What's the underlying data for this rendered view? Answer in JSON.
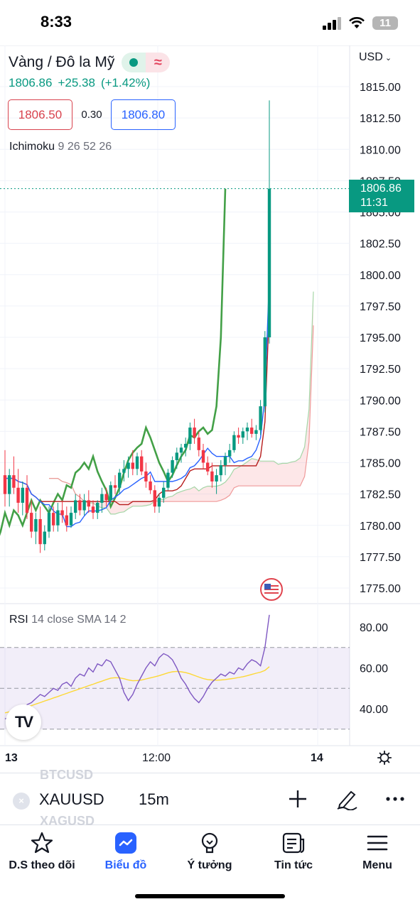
{
  "status_bar": {
    "time": "8:33",
    "battery": "11"
  },
  "header": {
    "symbol_title": "Vàng / Đô la Mỹ",
    "currency": "USD",
    "last_price": "1806.86",
    "change": "+25.38",
    "change_pct": "(+1.42%)",
    "bid": "1806.50",
    "spread": "0.30",
    "ask": "1806.80",
    "indicator_name": "Ichimoku",
    "indicator_params": "9 26 52 26"
  },
  "price_tag": {
    "price": "1806.86",
    "countdown": "11:31"
  },
  "rsi": {
    "name": "RSI",
    "params": "14 close SMA 14 2"
  },
  "colors": {
    "up": "#089981",
    "down": "#f23645",
    "tenkan": "#2962ff",
    "kijun": "#b71c1c",
    "chikou": "#43a047",
    "rsi_line": "#7e57c2",
    "rsi_ma": "#fdd835",
    "accent": "#2962ff"
  },
  "time_axis": [
    {
      "label": "13",
      "bold": true
    },
    {
      "label": "12:00",
      "bold": false
    },
    {
      "label": "14",
      "bold": true
    }
  ],
  "toolbar": {
    "ghost_prev": "BTCUSD",
    "ghost_next": "XAGUSD",
    "symbol": "XAUUSD",
    "interval": "15m"
  },
  "tabs": [
    {
      "label": "D.S theo dõi",
      "icon": "star-icon",
      "active": false
    },
    {
      "label": "Biểu đồ",
      "icon": "chart-icon",
      "active": true
    },
    {
      "label": "Ý tưởng",
      "icon": "bulb-icon",
      "active": false
    },
    {
      "label": "Tin tức",
      "icon": "news-icon",
      "active": false
    },
    {
      "label": "Menu",
      "icon": "menu-icon",
      "active": false
    }
  ],
  "chart_data": [
    {
      "type": "candlestick",
      "title": "Vàng / Đô la Mỹ",
      "interval": "15m",
      "y_axis_ticks": [
        "1815.00",
        "1812.50",
        "1810.00",
        "1807.50",
        "1805.00",
        "1802.50",
        "1800.00",
        "1797.50",
        "1795.00",
        "1792.50",
        "1790.00",
        "1787.50",
        "1785.00",
        "1782.50",
        "1780.00",
        "1777.50",
        "1775.00"
      ],
      "ylim": [
        1774.5,
        1816.5
      ],
      "x_axis_ticks": [
        "13",
        "12:00",
        "14"
      ],
      "last_price": 1806.86,
      "x_start": 0,
      "x_step": 6.2,
      "candles": [
        [
          1784.0,
          1786.0,
          1781.5,
          1782.5
        ],
        [
          1782.5,
          1784.5,
          1781.5,
          1784.0
        ],
        [
          1784.0,
          1785.5,
          1782.5,
          1783.0
        ],
        [
          1783.0,
          1784.5,
          1781.0,
          1781.8
        ],
        [
          1781.8,
          1783.5,
          1780.8,
          1783.0
        ],
        [
          1783.0,
          1784.0,
          1780.5,
          1781.0
        ],
        [
          1781.0,
          1782.0,
          1779.0,
          1779.5
        ],
        [
          1779.5,
          1781.0,
          1778.5,
          1780.5
        ],
        [
          1780.5,
          1781.5,
          1777.8,
          1778.5
        ],
        [
          1778.5,
          1780.0,
          1778.0,
          1779.5
        ],
        [
          1779.5,
          1781.5,
          1779.0,
          1781.0
        ],
        [
          1781.0,
          1781.5,
          1779.5,
          1780.0
        ],
        [
          1780.0,
          1781.8,
          1779.5,
          1781.2
        ],
        [
          1781.2,
          1782.0,
          1780.2,
          1780.8
        ],
        [
          1780.8,
          1781.5,
          1779.5,
          1780.0
        ],
        [
          1780.0,
          1781.5,
          1779.8,
          1781.0
        ],
        [
          1781.0,
          1782.5,
          1780.5,
          1782.0
        ],
        [
          1782.0,
          1782.5,
          1780.8,
          1781.2
        ],
        [
          1781.2,
          1782.5,
          1780.8,
          1782.0
        ],
        [
          1782.0,
          1782.8,
          1781.0,
          1781.5
        ],
        [
          1781.5,
          1782.0,
          1780.5,
          1781.0
        ],
        [
          1781.0,
          1782.0,
          1780.5,
          1781.8
        ],
        [
          1781.8,
          1783.0,
          1781.0,
          1782.5
        ],
        [
          1782.5,
          1783.0,
          1781.5,
          1782.0
        ],
        [
          1782.0,
          1783.5,
          1781.8,
          1783.2
        ],
        [
          1783.2,
          1784.0,
          1782.5,
          1783.0
        ],
        [
          1783.0,
          1784.5,
          1782.5,
          1784.2
        ],
        [
          1784.2,
          1785.2,
          1783.5,
          1784.5
        ],
        [
          1784.5,
          1785.5,
          1783.8,
          1785.0
        ],
        [
          1785.0,
          1786.0,
          1784.0,
          1784.5
        ],
        [
          1784.5,
          1785.8,
          1784.0,
          1785.5
        ],
        [
          1785.5,
          1786.0,
          1784.0,
          1784.3
        ],
        [
          1784.3,
          1785.0,
          1783.0,
          1783.5
        ],
        [
          1783.5,
          1784.0,
          1782.5,
          1782.8
        ],
        [
          1782.8,
          1783.2,
          1781.0,
          1781.5
        ],
        [
          1781.5,
          1782.5,
          1781.0,
          1782.2
        ],
        [
          1782.2,
          1783.5,
          1781.8,
          1783.0
        ],
        [
          1783.0,
          1784.5,
          1782.8,
          1784.2
        ],
        [
          1784.2,
          1785.5,
          1783.8,
          1785.2
        ],
        [
          1785.2,
          1786.2,
          1784.5,
          1785.8
        ],
        [
          1785.8,
          1786.5,
          1785.0,
          1786.2
        ],
        [
          1786.2,
          1787.0,
          1785.5,
          1786.5
        ],
        [
          1786.5,
          1788.2,
          1786.0,
          1787.8
        ],
        [
          1787.8,
          1788.5,
          1786.5,
          1787.0
        ],
        [
          1787.0,
          1787.5,
          1785.5,
          1786.0
        ],
        [
          1786.0,
          1786.5,
          1784.5,
          1785.0
        ],
        [
          1785.0,
          1785.5,
          1784.0,
          1784.3
        ],
        [
          1784.3,
          1785.0,
          1783.0,
          1783.5
        ],
        [
          1783.5,
          1784.5,
          1782.5,
          1784.0
        ],
        [
          1784.0,
          1785.2,
          1783.5,
          1784.8
        ],
        [
          1784.8,
          1785.8,
          1784.0,
          1785.5
        ],
        [
          1785.5,
          1786.5,
          1785.0,
          1786.0
        ],
        [
          1786.0,
          1787.5,
          1785.8,
          1787.2
        ],
        [
          1787.2,
          1787.8,
          1786.5,
          1787.0
        ],
        [
          1787.0,
          1787.8,
          1786.5,
          1787.5
        ],
        [
          1787.5,
          1788.2,
          1786.8,
          1787.8
        ],
        [
          1787.8,
          1788.5,
          1787.0,
          1787.3
        ],
        [
          1787.3,
          1788.0,
          1786.8,
          1787.6
        ],
        [
          1787.6,
          1790.0,
          1787.2,
          1789.5
        ],
        [
          1789.5,
          1795.5,
          1789.0,
          1795.0
        ],
        [
          1795.0,
          1813.9,
          1794.5,
          1806.86
        ]
      ]
    },
    {
      "type": "line",
      "title": "RSI",
      "params": "14 close SMA 14 2",
      "y_axis_ticks": [
        "80.00",
        "60.00",
        "40.00"
      ],
      "ylim": [
        26.5,
        86.5
      ],
      "bands": [
        30,
        50,
        70
      ],
      "series": [
        {
          "name": "RSI",
          "values": [
            35,
            36,
            37,
            35,
            40,
            42,
            43,
            45,
            47,
            46,
            48,
            50,
            49,
            52,
            53,
            51,
            55,
            57,
            56,
            60,
            58,
            62,
            61,
            64,
            63,
            59,
            55,
            48,
            44,
            47,
            52,
            56,
            60,
            63,
            61,
            65,
            67,
            66,
            64,
            60,
            55,
            52,
            48,
            45,
            43,
            46,
            50,
            53,
            55,
            57,
            56,
            58,
            57,
            60,
            59,
            62,
            64,
            63,
            61,
            70,
            86
          ]
        },
        {
          "name": "RSI-based MA",
          "values": [
            38,
            38.5,
            39,
            39.5,
            40,
            40.8,
            41.5,
            42.3,
            43,
            43.8,
            44.5,
            45.3,
            46,
            46.8,
            47.5,
            48.3,
            49,
            49.8,
            50.5,
            51.3,
            52,
            52.8,
            53.5,
            54.3,
            55,
            55.2,
            55.1,
            54.7,
            54.1,
            53.7,
            53.8,
            54.1,
            54.6,
            55.1,
            55.6,
            56.2,
            56.9,
            57.6,
            58.1,
            58.3,
            58.1,
            57.7,
            57.1,
            56.3,
            55.5,
            54.8,
            54.3,
            54.1,
            54,
            54.1,
            54.3,
            54.6,
            54.9,
            55.3,
            55.7,
            56.2,
            56.8,
            57.4,
            57.9,
            58.8,
            60.6
          ]
        }
      ]
    }
  ]
}
